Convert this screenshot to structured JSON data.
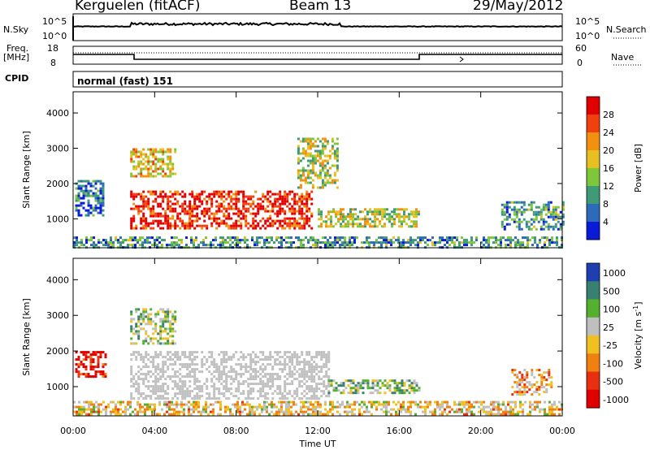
{
  "header": {
    "station": "Kerguelen (fitACF)",
    "beam": "Beam 13",
    "date": "29/May/2012"
  },
  "aux_labels": {
    "nsky": "N.Sky",
    "nsky_hi": "10^5",
    "nsky_lo": "10^0",
    "nsearch": "N.Search",
    "nsearch_hi": "10^5",
    "nsearch_lo": "10^0",
    "freq": "Freq.",
    "freq_unit": "[MHz]",
    "freq_hi": "18",
    "freq_lo": "8",
    "nave": "Nave",
    "nave_hi": "60",
    "nave_lo": "0",
    "cpid": "CPID",
    "cpid_value": "normal (fast) 151"
  },
  "colors": {
    "power": [
      "#0a1bd8",
      "#2d6ab8",
      "#3f9a78",
      "#7fc73a",
      "#e6c020",
      "#f29010",
      "#f04010",
      "#e00000"
    ],
    "velocity": [
      "#1f3fb0",
      "#3a8070",
      "#55b030",
      "#bfbfbf",
      "#f0c020",
      "#f08010",
      "#e83010",
      "#e00000"
    ],
    "ground_scatter": "#c0c0c0"
  },
  "chart_data": [
    {
      "type": "heatmap",
      "name": "power",
      "ylabel": "Slant Range [km]",
      "xlabel": "Time UT",
      "x_ticks": [
        "00:00",
        "04:00",
        "08:00",
        "12:00",
        "16:00",
        "20:00",
        "00:00"
      ],
      "y_ticks": [
        "1000",
        "2000",
        "3000",
        "4000"
      ],
      "xlim_hours": [
        0,
        24
      ],
      "ylim_km": [
        180,
        4600
      ],
      "colorbar_label": "Power [dB]",
      "colorbar_ticks": [
        "4",
        "8",
        "12",
        "16",
        "20",
        "24",
        "28"
      ],
      "regions": [
        {
          "t": [
            2.8,
            11.7
          ],
          "r": [
            700,
            1800
          ],
          "level": 0.9
        },
        {
          "t": [
            0.1,
            1.5
          ],
          "r": [
            1100,
            2100
          ],
          "level": 0.2
        },
        {
          "t": [
            12.0,
            17.0
          ],
          "r": [
            800,
            1300
          ],
          "level": 0.5
        },
        {
          "t": [
            21.0,
            24.0
          ],
          "r": [
            700,
            1500
          ],
          "level": 0.3
        },
        {
          "t": [
            2.8,
            5.0
          ],
          "r": [
            2200,
            3000
          ],
          "level": 0.6
        },
        {
          "t": [
            11.0,
            13.0
          ],
          "r": [
            1900,
            3300
          ],
          "level": 0.5
        },
        {
          "t": [
            0,
            24
          ],
          "r": [
            200,
            500
          ],
          "level": 0.3
        }
      ]
    },
    {
      "type": "heatmap",
      "name": "velocity",
      "ylabel": "Slant Range [km]",
      "xlabel": "Time UT",
      "x_ticks": [
        "00:00",
        "04:00",
        "08:00",
        "12:00",
        "16:00",
        "20:00",
        "00:00"
      ],
      "y_ticks": [
        "1000",
        "2000",
        "3000",
        "4000"
      ],
      "xlim_hours": [
        0,
        24
      ],
      "ylim_km": [
        180,
        4600
      ],
      "colorbar_label": "Velocity [m s",
      "colorbar_sup": "-1",
      "colorbar_ticks": [
        "1000",
        "500",
        "100",
        "25",
        "-25",
        "-100",
        "-500",
        "-1000"
      ],
      "regions": [
        {
          "t": [
            2.8,
            12.5
          ],
          "r": [
            700,
            2000
          ],
          "kind": "ground"
        },
        {
          "t": [
            0.1,
            1.6
          ],
          "r": [
            1300,
            2000
          ],
          "level": 0.9
        },
        {
          "t": [
            12.5,
            17.0
          ],
          "r": [
            800,
            1200
          ],
          "level": 0.35
        },
        {
          "t": [
            21.5,
            23.5
          ],
          "r": [
            800,
            1500
          ],
          "level": 0.6
        },
        {
          "t": [
            2.8,
            5.0
          ],
          "r": [
            2200,
            3200
          ],
          "level": 0.4
        },
        {
          "t": [
            0,
            24
          ],
          "r": [
            200,
            600
          ],
          "level": 0.55
        }
      ]
    }
  ]
}
